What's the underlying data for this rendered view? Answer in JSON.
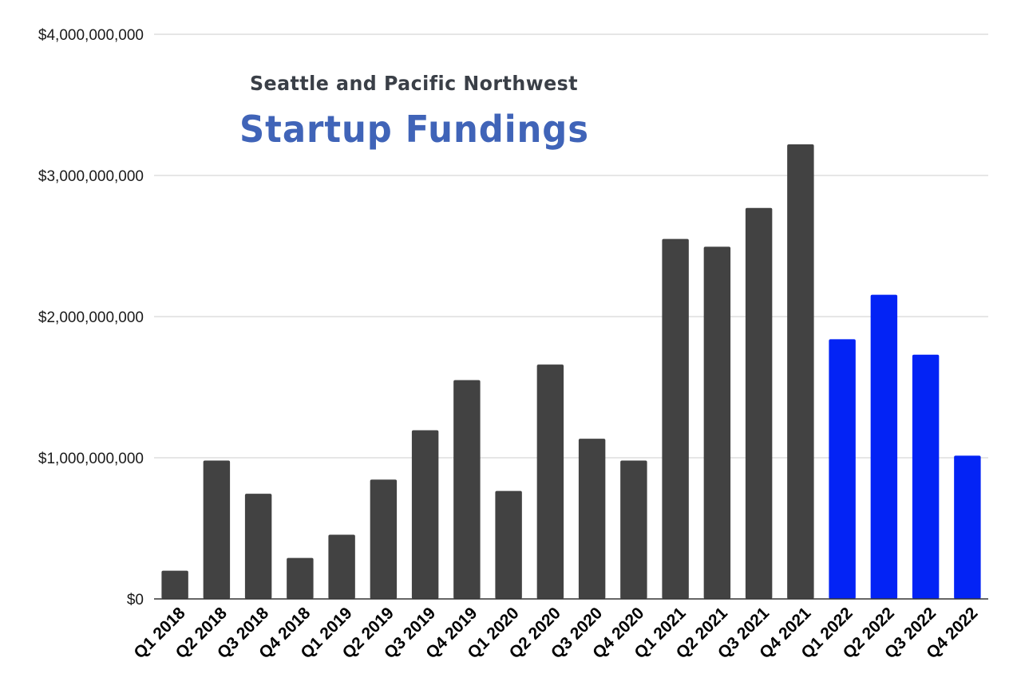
{
  "chart_data": {
    "type": "bar",
    "title_line1": "Seattle and Pacific Northwest",
    "title_line2": "Startup Fundings",
    "categories": [
      "Q1 2018",
      "Q2 2018",
      "Q3 2018",
      "Q4 2018",
      "Q1 2019",
      "Q2 2019",
      "Q3 2019",
      "Q4 2019",
      "Q1 2020",
      "Q2 2020",
      "Q3 2020",
      "Q4 2020",
      "Q1 2021",
      "Q2 2021",
      "Q3 2021",
      "Q4 2021",
      "Q1 2022",
      "Q2 2022",
      "Q3 2022",
      "Q4 2022"
    ],
    "values": [
      200000000,
      980000000,
      745000000,
      290000000,
      455000000,
      845000000,
      1195000000,
      1550000000,
      765000000,
      1660000000,
      1135000000,
      980000000,
      2550000000,
      2495000000,
      2770000000,
      3220000000,
      1840000000,
      2155000000,
      1730000000,
      1015000000
    ],
    "ylim": [
      0,
      4000000000
    ],
    "yticks": [
      0,
      1000000000,
      2000000000,
      3000000000,
      4000000000
    ],
    "ytick_labels": [
      "$0",
      "$1,000,000,000",
      "$2,000,000,000",
      "$3,000,000,000",
      "$4,000,000,000"
    ],
    "xlabel": "",
    "ylabel": "",
    "grid": true,
    "colors": {
      "default_bar": "#424242",
      "highlight_bar": "#0323f5",
      "grid": "#cccccc",
      "baseline": "#333333",
      "title_line1": "#3a3f47",
      "title_line2": "#4064b8"
    },
    "highlighted_categories": [
      "Q1 2022",
      "Q2 2022",
      "Q3 2022",
      "Q4 2022"
    ]
  }
}
